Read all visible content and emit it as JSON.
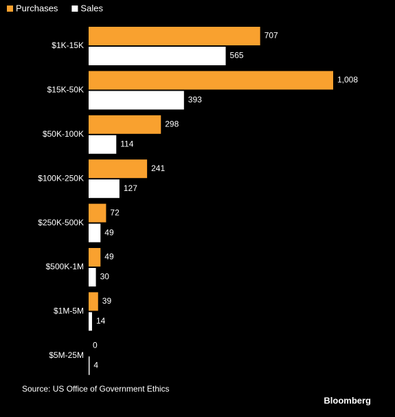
{
  "chart_data": {
    "type": "bar",
    "orientation": "horizontal",
    "categories": [
      "$1K-15K",
      "$15K-50K",
      "$50K-100K",
      "$100K-250K",
      "$250K-500K",
      "$500K-1M",
      "$1M-5M",
      "$5M-25M"
    ],
    "series": [
      {
        "name": "Purchases",
        "color": "#f9a12f",
        "values": [
          707,
          1008,
          298,
          241,
          72,
          49,
          39,
          0
        ],
        "value_labels": [
          "707",
          "1,008",
          "298",
          "241",
          "72",
          "49",
          "39",
          "0"
        ]
      },
      {
        "name": "Sales",
        "color": "#ffffff",
        "values": [
          565,
          393,
          114,
          127,
          49,
          30,
          14,
          4
        ]
      }
    ],
    "legend": "top-left",
    "source": "Source: US Office of Government Ethics",
    "brand": "Bloomberg"
  }
}
